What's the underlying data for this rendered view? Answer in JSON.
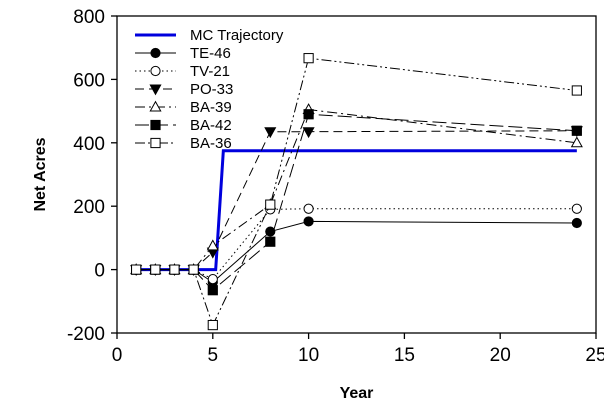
{
  "chart_data": {
    "type": "line",
    "title": "",
    "xlabel": "Year",
    "ylabel": "Net Acres",
    "xlim": [
      0,
      25
    ],
    "ylim": [
      -200,
      800
    ],
    "xticks": [
      0,
      5,
      10,
      15,
      20,
      25
    ],
    "yticks": [
      -200,
      0,
      200,
      400,
      600,
      800
    ],
    "grid": false,
    "legend_position": "top-left",
    "series": [
      {
        "name": "MC Trajectory",
        "style": "solid-thick",
        "color": "#0000dd",
        "marker": "none",
        "points": [
          [
            1,
            0
          ],
          [
            5.15,
            0
          ],
          [
            5.55,
            375
          ],
          [
            24,
            375
          ]
        ]
      },
      {
        "name": "TE-46",
        "style": "solid",
        "color": "#000000",
        "marker": "filled-circle",
        "points": [
          [
            1,
            0
          ],
          [
            2,
            0
          ],
          [
            3,
            0
          ],
          [
            4,
            0
          ],
          [
            5,
            -40
          ],
          [
            8,
            120
          ],
          [
            10,
            152
          ],
          [
            24,
            147
          ]
        ]
      },
      {
        "name": "TV-21",
        "style": "dotted",
        "color": "#000000",
        "marker": "open-circle",
        "points": [
          [
            1,
            0
          ],
          [
            2,
            0
          ],
          [
            3,
            0
          ],
          [
            4,
            0
          ],
          [
            5,
            -30
          ],
          [
            8,
            190
          ],
          [
            10,
            192
          ],
          [
            24,
            192
          ]
        ]
      },
      {
        "name": "PO-33",
        "style": "dash",
        "color": "#000000",
        "marker": "filled-triangle-down",
        "points": [
          [
            1,
            0
          ],
          [
            2,
            0
          ],
          [
            3,
            0
          ],
          [
            4,
            0
          ],
          [
            5,
            55
          ],
          [
            8,
            435
          ],
          [
            10,
            435
          ],
          [
            24,
            438
          ]
        ]
      },
      {
        "name": "BA-39",
        "style": "dash-dot",
        "color": "#000000",
        "marker": "open-triangle-up",
        "points": [
          [
            1,
            0
          ],
          [
            2,
            0
          ],
          [
            3,
            0
          ],
          [
            4,
            0
          ],
          [
            5,
            75
          ],
          [
            8,
            205
          ],
          [
            10,
            505
          ],
          [
            24,
            400
          ]
        ]
      },
      {
        "name": "BA-42",
        "style": "long-dash",
        "color": "#000000",
        "marker": "filled-square",
        "points": [
          [
            1,
            0
          ],
          [
            2,
            0
          ],
          [
            3,
            0
          ],
          [
            4,
            0
          ],
          [
            5,
            -65
          ],
          [
            8,
            88
          ],
          [
            10,
            490
          ],
          [
            24,
            438
          ]
        ]
      },
      {
        "name": "BA-36",
        "style": "dash-dot-dot",
        "color": "#000000",
        "marker": "open-square",
        "points": [
          [
            1,
            0
          ],
          [
            2,
            0
          ],
          [
            3,
            0
          ],
          [
            4,
            0
          ],
          [
            5,
            -175
          ],
          [
            8,
            205
          ],
          [
            10,
            667
          ],
          [
            24,
            565
          ]
        ]
      }
    ]
  }
}
